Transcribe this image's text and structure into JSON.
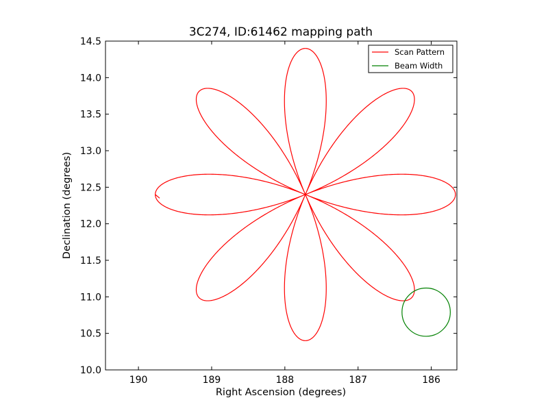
{
  "chart_data": {
    "type": "line",
    "title": "3C274, ID:61462 mapping path",
    "xlabel": "Right Ascension (degrees)",
    "ylabel": "Declination (degrees)",
    "xlim": [
      190.45,
      185.65
    ],
    "ylim": [
      10.0,
      14.5
    ],
    "x_inverted": true,
    "xticks": [
      190,
      189,
      188,
      187,
      186
    ],
    "yticks": [
      10.0,
      10.5,
      11.0,
      11.5,
      12.0,
      12.5,
      13.0,
      13.5,
      14.0,
      14.5
    ],
    "grid": false,
    "legend_position": "top-right",
    "series": [
      {
        "name": "Scan Pattern",
        "color": "#ff0000",
        "shape": "rose",
        "center": [
          187.72,
          12.4
        ],
        "petals": 8,
        "petal_length_ra": 2.05,
        "petal_length_dec": 2.0,
        "petal_half_width_rad": 0.4,
        "start_angle_deg": 180,
        "end_angle_deg": 540,
        "start_point": [
          189.77,
          12.39
        ],
        "end_point": [
          189.71,
          12.35
        ]
      },
      {
        "name": "Beam Width",
        "color": "#008000",
        "shape": "circle",
        "center": [
          186.07,
          10.79
        ],
        "radius_deg": 0.33
      }
    ],
    "legend": [
      {
        "label": "Scan Pattern",
        "color": "#ff0000"
      },
      {
        "label": "Beam Width",
        "color": "#008000"
      }
    ]
  }
}
